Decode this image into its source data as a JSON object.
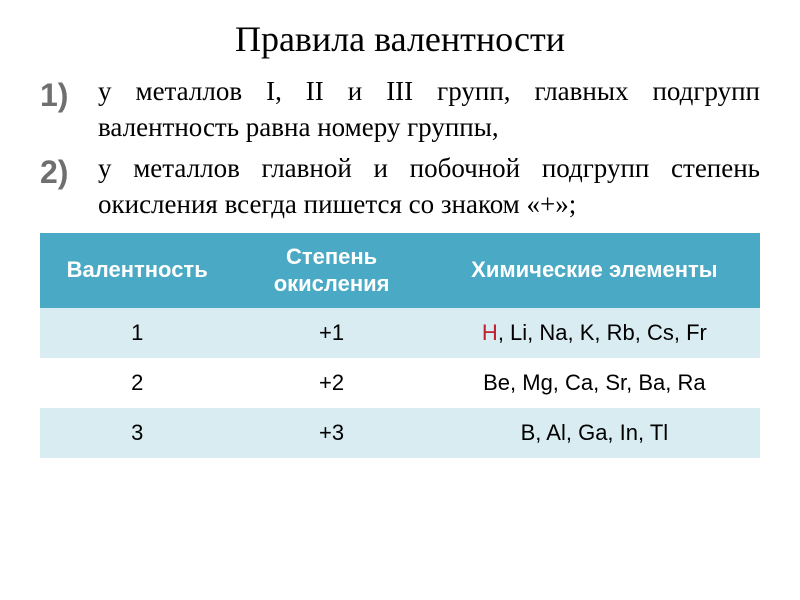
{
  "title": "Правила валентности",
  "rules": [
    "у металлов I, II и III групп, главных подгрупп валентность равна номеру группы,",
    "у металлов главной и побочной подгрупп степень окисления всегда пишется со знаком «+»;"
  ],
  "table": {
    "header_bg": "#4aa9c4",
    "header_color": "#ffffff",
    "band_bg": "#d8ecf2",
    "plain_bg": "#ffffff",
    "highlight_color": "#c02030",
    "columns": [
      "Валентность",
      "Степень окисления",
      "Химические элементы"
    ],
    "rows": [
      {
        "valence": "1",
        "oxidation": "+1",
        "elements_prefix": "H",
        "elements_rest": ", Li, Na, K, Rb, Cs, Fr"
      },
      {
        "valence": "2",
        "oxidation": "+2",
        "elements_prefix": "",
        "elements_rest": "Be, Mg, Ca, Sr, Ba, Ra"
      },
      {
        "valence": "3",
        "oxidation": "+3",
        "elements_prefix": "",
        "elements_rest": "B, Al, Ga, In, Tl"
      }
    ]
  }
}
